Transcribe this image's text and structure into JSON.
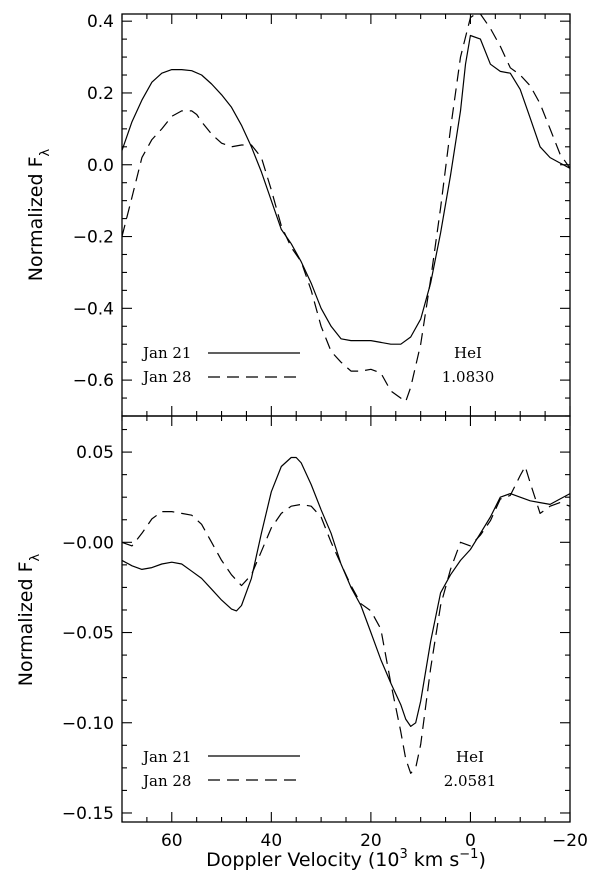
{
  "chart_data": [
    {
      "type": "line",
      "ylabel": "Normalized F",
      "ylabel_sub": "λ",
      "xlim": [
        70,
        -20
      ],
      "ylim": [
        -0.7,
        0.42
      ],
      "yticks": [
        -0.6,
        -0.4,
        -0.2,
        0.0,
        0.2,
        0.4
      ],
      "ytick_labels": [
        "−0.6",
        "−0.4",
        "−0.2",
        "0.0",
        "0.2",
        "0.4"
      ],
      "series": [
        {
          "name": "Jan 21",
          "dash": "solid",
          "x": [
            70,
            68,
            66,
            64,
            62,
            60,
            58,
            56,
            54,
            52,
            50,
            48,
            46,
            44,
            42,
            40,
            38,
            36,
            34,
            32,
            30,
            28,
            26,
            24,
            22,
            20,
            18,
            16,
            14,
            12,
            10,
            8,
            6,
            4,
            2,
            1,
            0,
            -2,
            -4,
            -6,
            -8,
            -10,
            -12,
            -14,
            -16,
            -18,
            -20
          ],
          "y": [
            0.04,
            0.12,
            0.18,
            0.23,
            0.255,
            0.265,
            0.265,
            0.262,
            0.25,
            0.225,
            0.195,
            0.16,
            0.11,
            0.05,
            -0.02,
            -0.1,
            -0.18,
            -0.22,
            -0.27,
            -0.33,
            -0.4,
            -0.45,
            -0.485,
            -0.49,
            -0.49,
            -0.49,
            -0.495,
            -0.5,
            -0.5,
            -0.48,
            -0.43,
            -0.33,
            -0.19,
            -0.03,
            0.15,
            0.28,
            0.36,
            0.35,
            0.28,
            0.26,
            0.255,
            0.21,
            0.13,
            0.05,
            0.02,
            0.005,
            -0.01
          ]
        },
        {
          "name": "Jan 28",
          "dash": "dashed",
          "x": [
            70,
            68,
            66,
            64,
            62,
            60,
            58,
            56,
            55,
            54,
            52,
            50,
            48,
            46,
            44,
            42,
            40,
            38,
            36,
            34,
            32,
            30,
            28,
            26,
            24,
            22,
            20,
            18,
            16,
            14,
            13,
            12,
            10,
            8,
            6,
            4,
            2,
            0,
            -1,
            -2,
            -4,
            -6,
            -8,
            -10,
            -12,
            -14,
            -16,
            -18,
            -20
          ],
          "y": [
            -0.2,
            -0.09,
            0.02,
            0.07,
            0.1,
            0.135,
            0.15,
            0.15,
            0.14,
            0.12,
            0.085,
            0.06,
            0.05,
            0.055,
            0.055,
            0.02,
            -0.07,
            -0.17,
            -0.23,
            -0.27,
            -0.35,
            -0.45,
            -0.52,
            -0.55,
            -0.575,
            -0.575,
            -0.57,
            -0.58,
            -0.63,
            -0.65,
            -0.66,
            -0.62,
            -0.5,
            -0.32,
            -0.12,
            0.1,
            0.3,
            0.41,
            0.42,
            0.42,
            0.38,
            0.33,
            0.27,
            0.25,
            0.22,
            0.17,
            0.1,
            0.03,
            -0.01
          ]
        }
      ],
      "legend": [
        {
          "label": "Jan 21",
          "dash": "solid"
        },
        {
          "label": "Jan 28",
          "dash": "dashed"
        }
      ],
      "annotation": [
        "HeI",
        "1.0830"
      ]
    },
    {
      "type": "line",
      "ylabel": "Normalized F",
      "ylabel_sub": "λ",
      "xlabel": "Doppler Velocity (10",
      "xlabel_sup": "3",
      "xlabel_units": " km s",
      "xlabel_units_sup": "−1",
      "xlabel_close": ")",
      "xlim": [
        70,
        -20
      ],
      "ylim": [
        -0.155,
        0.07
      ],
      "xticks": [
        60,
        40,
        20,
        0,
        -20
      ],
      "xtick_labels": [
        "60",
        "40",
        "20",
        "0",
        "−20"
      ],
      "yticks": [
        -0.15,
        -0.1,
        -0.05,
        0.0,
        0.05
      ],
      "ytick_labels": [
        "−0.15",
        "−0.10",
        "−0.05",
        "−0.00",
        "0.05"
      ],
      "series": [
        {
          "name": "Jan 21",
          "dash": "solid",
          "x": [
            70,
            68,
            66,
            64,
            62,
            60,
            58,
            56,
            54,
            52,
            50,
            48,
            47,
            46,
            44,
            42,
            40,
            38,
            36,
            35,
            34,
            32,
            30,
            28,
            26,
            24,
            22,
            20,
            18,
            16,
            14,
            13,
            12,
            11,
            10,
            8,
            6,
            4,
            2,
            0,
            -2,
            -4,
            -6,
            -8,
            -10,
            -12,
            -14,
            -16,
            -18,
            -20
          ],
          "y": [
            -0.01,
            -0.013,
            -0.015,
            -0.014,
            -0.012,
            -0.011,
            -0.012,
            -0.016,
            -0.02,
            -0.026,
            -0.032,
            -0.037,
            -0.038,
            -0.035,
            -0.02,
            0.005,
            0.028,
            0.042,
            0.047,
            0.047,
            0.044,
            0.032,
            0.018,
            0.005,
            -0.012,
            -0.025,
            -0.035,
            -0.05,
            -0.065,
            -0.078,
            -0.09,
            -0.098,
            -0.102,
            -0.1,
            -0.088,
            -0.055,
            -0.028,
            -0.018,
            -0.01,
            -0.004,
            0.005,
            0.014,
            0.025,
            0.027,
            0.025,
            0.023,
            0.022,
            0.021,
            0.024,
            0.027
          ]
        },
        {
          "name": "Jan 28",
          "dash": "dashed",
          "x": [
            70,
            68,
            66,
            64,
            62,
            60,
            58,
            56,
            54,
            52,
            50,
            48,
            46,
            44,
            42,
            40,
            38,
            36,
            34,
            32,
            30,
            28,
            26,
            24,
            22,
            20,
            18,
            16,
            14,
            13,
            12,
            11,
            10,
            8,
            6,
            4,
            2,
            0,
            -2,
            -4,
            -6,
            -8,
            -10,
            -11,
            -12,
            -14,
            -16,
            -18,
            -20
          ],
          "y": [
            0.0,
            -0.002,
            0.005,
            0.013,
            0.017,
            0.017,
            0.016,
            0.015,
            0.01,
            0.0,
            -0.01,
            -0.018,
            -0.024,
            -0.018,
            -0.005,
            0.008,
            0.016,
            0.02,
            0.021,
            0.02,
            0.014,
            0.0,
            -0.012,
            -0.024,
            -0.034,
            -0.038,
            -0.048,
            -0.078,
            -0.105,
            -0.12,
            -0.128,
            -0.125,
            -0.112,
            -0.07,
            -0.035,
            -0.015,
            0.0,
            -0.002,
            0.004,
            0.012,
            0.024,
            0.026,
            0.037,
            0.042,
            0.033,
            0.016,
            0.02,
            0.022,
            0.02
          ]
        }
      ],
      "legend": [
        {
          "label": "Jan 21",
          "dash": "solid"
        },
        {
          "label": "Jan 28",
          "dash": "dashed"
        }
      ],
      "annotation": [
        "HeI",
        "2.0581"
      ]
    }
  ]
}
